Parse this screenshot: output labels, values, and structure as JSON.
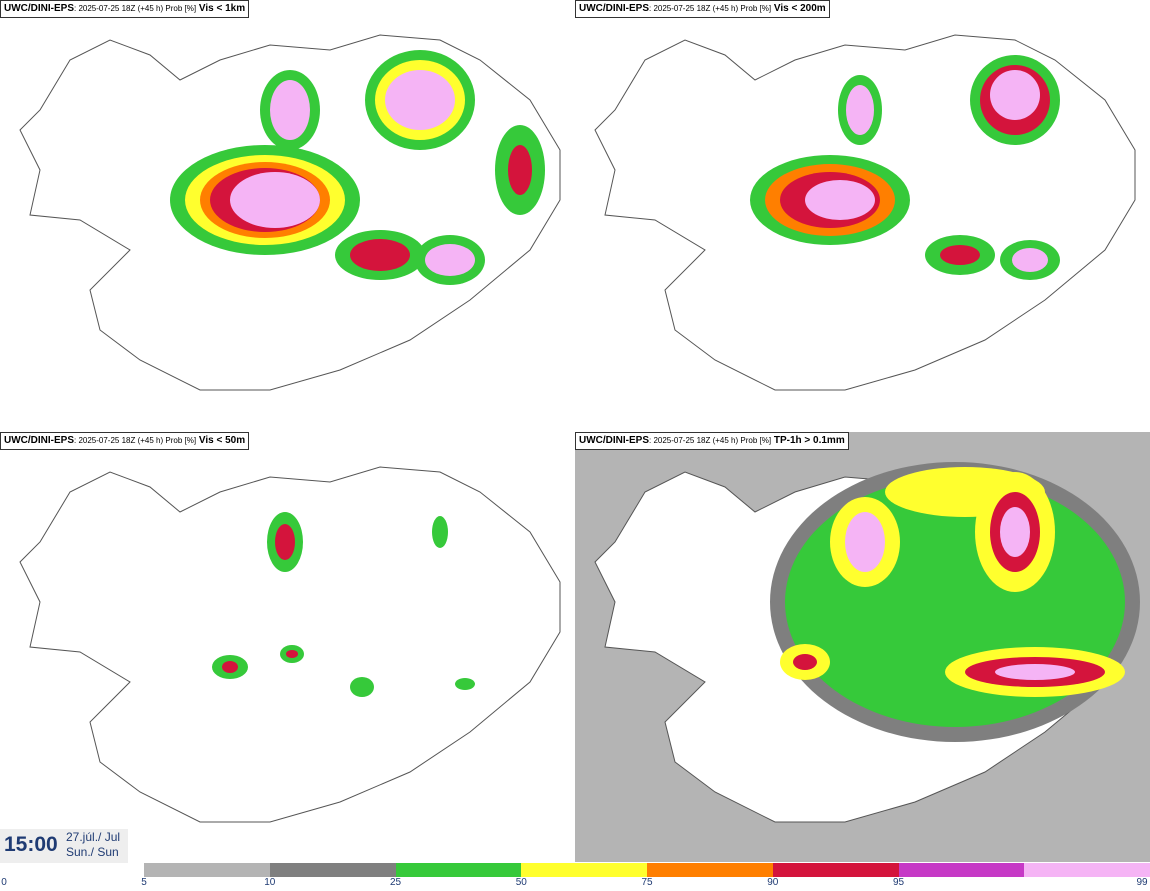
{
  "panels": [
    {
      "model": "UWC/DINI-EPS",
      "meta": ": 2025-07-25 18Z (+45 h) Prob [%]",
      "variable": "Vis < 1km"
    },
    {
      "model": "UWC/DINI-EPS",
      "meta": ": 2025-07-25 18Z (+45 h) Prob [%]",
      "variable": "Vis < 200m"
    },
    {
      "model": "UWC/DINI-EPS",
      "meta": ": 2025-07-25 18Z (+45 h) Prob [%]",
      "variable": "Vis < 50m"
    },
    {
      "model": "UWC/DINI-EPS",
      "meta": ": 2025-07-25 18Z (+45 h) Prob [%]",
      "variable": "TP-1h > 0.1mm"
    }
  ],
  "valid_time": {
    "time": "15:00",
    "date_line1": "27.júl./ Jul",
    "date_line2": "Sun./ Sun"
  },
  "colorbar": {
    "ticks": [
      "0",
      "5",
      "10",
      "25",
      "50",
      "75",
      "90",
      "95",
      "99"
    ],
    "colors": [
      "#b4b4b4",
      "#7f7f7f",
      "#36c93a",
      "#ffff2e",
      "#ff7f00",
      "#d4143c",
      "#c639c6",
      "#f5b4f5"
    ]
  },
  "legend_colors": {
    "land_outline": "#555555",
    "map_background": "#ffffff"
  }
}
